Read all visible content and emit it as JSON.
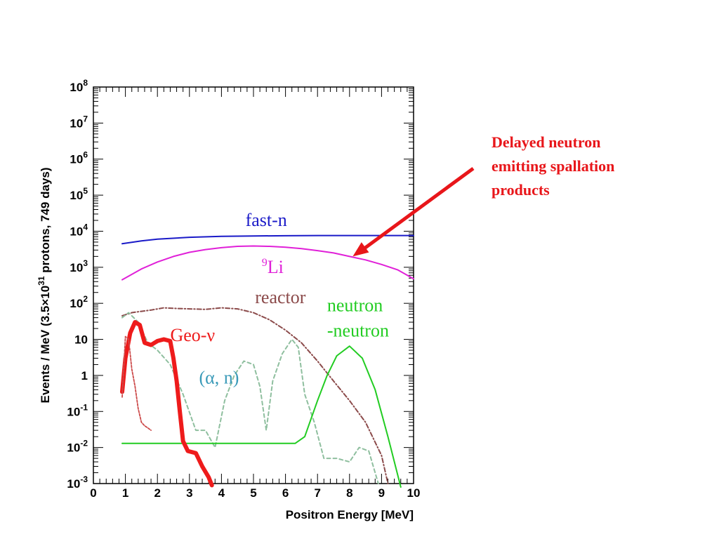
{
  "chart_data": {
    "type": "line",
    "xlabel": "Positron Energy [MeV]",
    "ylabel": "Events / MeV (3.5×10",
    "ylabel_exp": "31",
    "ylabel_tail": " protons, 749 days)",
    "xlim": [
      0,
      10
    ],
    "ylim": [
      0.001,
      100000000
    ],
    "yscale": "log",
    "x_ticks": [
      "0",
      "1",
      "2",
      "3",
      "4",
      "5",
      "6",
      "7",
      "8",
      "9",
      "10"
    ],
    "y_ticks": [
      {
        "base": "10",
        "exp": "-3"
      },
      {
        "base": "10",
        "exp": "-2"
      },
      {
        "base": "10",
        "exp": "-1"
      },
      {
        "base": "1",
        "exp": ""
      },
      {
        "base": "10",
        "exp": ""
      },
      {
        "base": "10",
        "exp": "2"
      },
      {
        "base": "10",
        "exp": "3"
      },
      {
        "base": "10",
        "exp": "4"
      },
      {
        "base": "10",
        "exp": "5"
      },
      {
        "base": "10",
        "exp": "6"
      },
      {
        "base": "10",
        "exp": "7"
      },
      {
        "base": "10",
        "exp": "8"
      }
    ],
    "series": [
      {
        "name": "fast-n",
        "color": "#1a1ac8",
        "style": "solid",
        "x": [
          0.9,
          1.5,
          2,
          3,
          4,
          5,
          6,
          7,
          8,
          9,
          10
        ],
        "y": [
          4500,
          5400,
          6000,
          6800,
          7200,
          7400,
          7500,
          7600,
          7600,
          7600,
          7600
        ]
      },
      {
        "name": "9Li",
        "color": "#e020d8",
        "style": "solid",
        "x": [
          0.9,
          1.5,
          2,
          2.5,
          3,
          3.5,
          4,
          4.5,
          5,
          5.5,
          6,
          6.5,
          7,
          7.5,
          8,
          8.5,
          9,
          9.5,
          10
        ],
        "y": [
          450,
          900,
          1400,
          2000,
          2600,
          3100,
          3500,
          3800,
          3900,
          3800,
          3600,
          3300,
          2900,
          2500,
          2000,
          1600,
          1200,
          850,
          480
        ]
      },
      {
        "name": "reactor",
        "color": "#8b4a4a",
        "style": "dashdot",
        "x": [
          0.9,
          1.2,
          1.5,
          1.8,
          2.2,
          2.6,
          3,
          3.5,
          4,
          4.5,
          5,
          5.5,
          6,
          6.5,
          7,
          7.5,
          8,
          8.5,
          9,
          9.2
        ],
        "y": [
          45,
          55,
          60,
          65,
          75,
          72,
          70,
          68,
          75,
          70,
          55,
          35,
          18,
          8,
          2.5,
          0.7,
          0.2,
          0.05,
          0.006,
          0.001
        ]
      },
      {
        "name": "(α, n)",
        "color": "#8fbf9f",
        "style": "dash",
        "x": [
          0.9,
          1.1,
          1.4,
          1.7,
          2,
          2.4,
          2.8,
          3.2,
          3.5,
          3.8,
          4.1,
          4.4,
          4.7,
          5,
          5.2,
          5.4,
          5.6,
          5.9,
          6.2,
          6.4,
          6.6,
          6.9,
          7.2,
          7.6,
          8,
          8.3,
          8.6,
          8.9
        ],
        "y": [
          40,
          55,
          30,
          8,
          5,
          2,
          0.3,
          0.03,
          0.03,
          0.01,
          0.2,
          1,
          2.5,
          2,
          0.5,
          0.03,
          0.7,
          4,
          10,
          6,
          0.3,
          0.05,
          0.005,
          0.005,
          0.004,
          0.01,
          0.008,
          0.001
        ]
      },
      {
        "name": "neutron -neutron",
        "color": "#22cc22",
        "style": "solid",
        "x": [
          0.9,
          2,
          4,
          6.3,
          6.6,
          7,
          7.3,
          7.6,
          8,
          8.4,
          8.8,
          9.2,
          9.6
        ],
        "y": [
          0.013,
          0.013,
          0.013,
          0.013,
          0.02,
          0.2,
          1,
          3.5,
          6.5,
          3,
          0.4,
          0.02,
          0.0008
        ]
      },
      {
        "name": "Geo-ν",
        "color": "#ee1b1b",
        "style": "thick",
        "x": [
          0.9,
          1.0,
          1.15,
          1.3,
          1.45,
          1.6,
          1.8,
          2.0,
          2.2,
          2.4,
          2.5,
          2.6,
          2.7,
          2.8,
          2.95,
          3.2,
          3.4,
          3.6,
          3.7
        ],
        "y": [
          0.35,
          3,
          15,
          30,
          25,
          8,
          7,
          9,
          10,
          9,
          3,
          0.7,
          0.1,
          0.015,
          0.008,
          0.007,
          0.003,
          0.0015,
          0.0009
        ]
      },
      {
        "name": "",
        "color": "#cc4a4a",
        "style": "dotted",
        "x": [
          0.9,
          1.0,
          1.1,
          1.2,
          1.3,
          1.4,
          1.5,
          1.6,
          1.7,
          1.8
        ],
        "y": [
          0.25,
          12,
          10,
          1.5,
          0.5,
          0.12,
          0.05,
          0.04,
          0.035,
          0.03
        ]
      }
    ],
    "annotations": [
      {
        "text": "fast-n",
        "color": "#1a1ac8",
        "x": 4.75,
        "y": 14000
      },
      {
        "text": "reactor",
        "color": "#8b4a4a",
        "x": 5.05,
        "y": 100
      },
      {
        "text": "Geo-ν",
        "color": "#ee1b1b",
        "x": 2.4,
        "y": 9
      },
      {
        "text": "(α, n)",
        "color": "#3a9ab8",
        "x": 3.3,
        "y": 0.6
      },
      {
        "text": "neutron",
        "color": "#22cc22",
        "x": 7.3,
        "y": 60
      },
      {
        "text": "-neutron",
        "color": "#22cc22",
        "x": 7.3,
        "y": 12
      }
    ],
    "li9_label": {
      "sup": "9",
      "text": "Li",
      "color": "#e020d8",
      "x": 5.6,
      "y": 700
    },
    "callout": {
      "lines": [
        "Delayed neutron",
        "emitting spallation",
        "products"
      ],
      "color": "#e8161a",
      "arrow_to": {
        "x": 8.1,
        "y": 2000
      }
    },
    "grid": false,
    "legend": "none"
  }
}
